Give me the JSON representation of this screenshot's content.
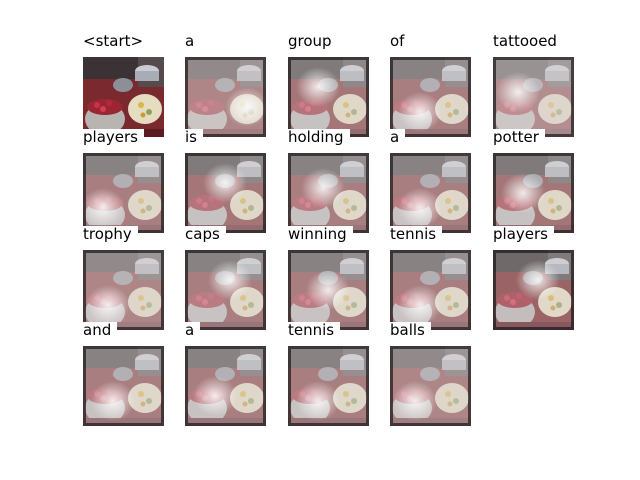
{
  "figure": {
    "words": [
      "<start>",
      "a",
      "group",
      "of",
      "tattooed",
      "players",
      "is",
      "holding",
      "a",
      "potter",
      "trophy",
      "caps",
      "winning",
      "tennis",
      "players",
      "and",
      "a",
      "tennis",
      "balls"
    ],
    "highlight_color": "#ffffff",
    "background_color": "#ffffff"
  }
}
